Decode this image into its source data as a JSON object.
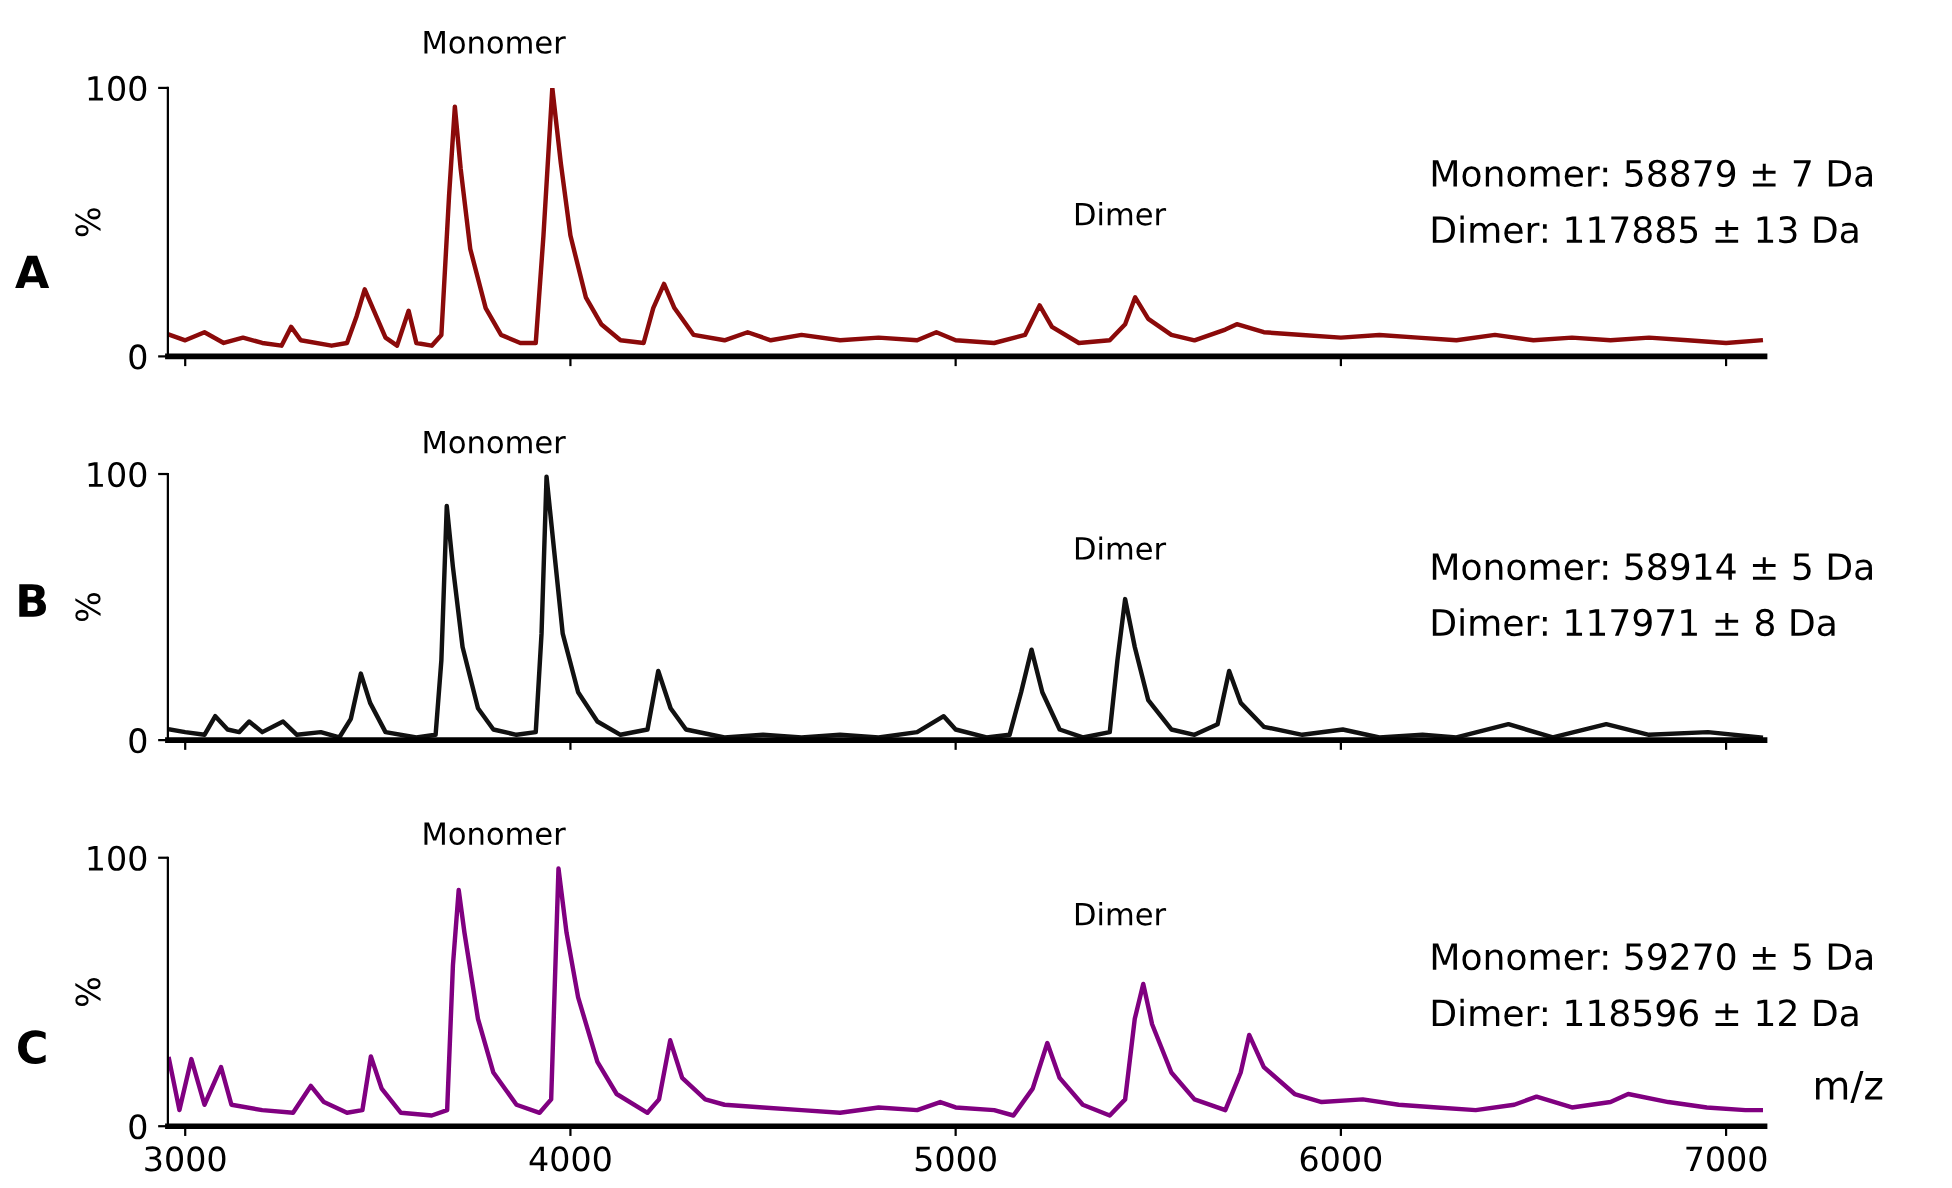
{
  "chart_data": [
    {
      "type": "line",
      "ylabel": "%",
      "xlim": [
        2955,
        7100
      ],
      "ylim": [
        0,
        100
      ],
      "yticks": [
        0,
        100
      ],
      "xticks": [
        3000,
        4000,
        5000,
        6000,
        7000
      ],
      "tick_labels": "y",
      "grid": false,
      "legend": false,
      "annotations": [
        "A",
        "Monomer",
        "Dimer",
        "Monomer: 58879 ± 7 Da",
        "Dimer: 117885 ± 13 Da"
      ],
      "series": [
        {
          "color": "#8b0a0a",
          "x": [
            2960,
            3000,
            3050,
            3100,
            3150,
            3200,
            3250,
            3275,
            3300,
            3380,
            3420,
            3445,
            3466,
            3490,
            3520,
            3550,
            3580,
            3600,
            3640,
            3665,
            3685,
            3700,
            3715,
            3740,
            3780,
            3820,
            3870,
            3910,
            3930,
            3953,
            3975,
            4000,
            4040,
            4080,
            4130,
            4190,
            4215,
            4243,
            4270,
            4320,
            4400,
            4460,
            4520,
            4600,
            4700,
            4800,
            4900,
            4950,
            5000,
            5100,
            5180,
            5218,
            5250,
            5320,
            5400,
            5440,
            5466,
            5500,
            5560,
            5620,
            5700,
            5730,
            5800,
            5900,
            6000,
            6100,
            6200,
            6300,
            6400,
            6500,
            6600,
            6700,
            6800,
            6900,
            7000,
            7090
          ],
          "values": [
            8,
            6,
            9,
            5,
            7,
            5,
            4,
            11,
            6,
            4,
            5,
            15,
            25,
            17,
            7,
            4,
            17,
            5,
            4,
            8,
            60,
            93,
            70,
            40,
            18,
            8,
            5,
            5,
            45,
            100,
            72,
            45,
            22,
            12,
            6,
            5,
            18,
            27,
            18,
            8,
            6,
            9,
            6,
            8,
            6,
            7,
            6,
            9,
            6,
            5,
            8,
            19,
            11,
            5,
            6,
            12,
            22,
            14,
            8,
            6,
            10,
            12,
            9,
            8,
            7,
            8,
            7,
            6,
            8,
            6,
            7,
            6,
            7,
            6,
            5,
            6
          ]
        }
      ]
    },
    {
      "type": "line",
      "ylabel": "%",
      "xlim": [
        2955,
        7100
      ],
      "ylim": [
        0,
        100
      ],
      "yticks": [
        0,
        100
      ],
      "xticks": [
        3000,
        4000,
        5000,
        6000,
        7000
      ],
      "tick_labels": "y",
      "grid": false,
      "legend": false,
      "annotations": [
        "B",
        "Monomer",
        "Dimer",
        "Monomer: 58914 ± 5 Da",
        "Dimer: 117971 ± 8 Da"
      ],
      "series": [
        {
          "color": "#111111",
          "x": [
            2960,
            3000,
            3050,
            3078,
            3110,
            3140,
            3166,
            3200,
            3254,
            3290,
            3352,
            3400,
            3430,
            3456,
            3480,
            3520,
            3600,
            3650,
            3665,
            3679,
            3695,
            3720,
            3760,
            3800,
            3860,
            3910,
            3925,
            3938,
            3955,
            3980,
            4020,
            4070,
            4130,
            4200,
            4228,
            4260,
            4300,
            4400,
            4500,
            4600,
            4700,
            4800,
            4900,
            4969,
            5000,
            5080,
            5140,
            5170,
            5197,
            5225,
            5270,
            5330,
            5400,
            5420,
            5440,
            5465,
            5500,
            5560,
            5620,
            5680,
            5710,
            5740,
            5800,
            5900,
            6005,
            6100,
            6212,
            6300,
            6435,
            6550,
            6689,
            6800,
            6953,
            7090
          ],
          "values": [
            4,
            3,
            2,
            9,
            4,
            3,
            7,
            3,
            7,
            2,
            3,
            1,
            8,
            25,
            14,
            3,
            1,
            2,
            30,
            88,
            65,
            35,
            12,
            4,
            2,
            3,
            40,
            99,
            75,
            40,
            18,
            7,
            2,
            4,
            26,
            12,
            4,
            1,
            2,
            1,
            2,
            1,
            3,
            9,
            4,
            1,
            2,
            18,
            34,
            18,
            4,
            1,
            3,
            30,
            53,
            35,
            15,
            4,
            2,
            6,
            26,
            14,
            5,
            2,
            4,
            1,
            2,
            1,
            6,
            1,
            6,
            2,
            3,
            1
          ]
        }
      ]
    },
    {
      "type": "line",
      "ylabel": "%",
      "xlabel": "m/z",
      "xlim": [
        2955,
        7100
      ],
      "ylim": [
        0,
        100
      ],
      "yticks": [
        0,
        100
      ],
      "xticks": [
        3000,
        4000,
        5000,
        6000,
        7000
      ],
      "grid": false,
      "legend": false,
      "annotations": [
        "C",
        "Monomer",
        "Dimer",
        "Monomer: 59270 ± 5 Da",
        "Dimer: 118596 ± 12 Da"
      ],
      "series": [
        {
          "color": "#800080",
          "x": [
            2958,
            2985,
            3016,
            3050,
            3093,
            3120,
            3200,
            3280,
            3326,
            3360,
            3420,
            3460,
            3482,
            3510,
            3560,
            3640,
            3680,
            3695,
            3710,
            3725,
            3760,
            3800,
            3860,
            3920,
            3950,
            3969,
            3990,
            4020,
            4070,
            4120,
            4200,
            4230,
            4259,
            4290,
            4350,
            4400,
            4500,
            4600,
            4700,
            4800,
            4900,
            4960,
            5000,
            5100,
            5150,
            5200,
            5238,
            5270,
            5330,
            5400,
            5440,
            5465,
            5487,
            5510,
            5560,
            5620,
            5700,
            5740,
            5762,
            5800,
            5880,
            5950,
            6057,
            6150,
            6250,
            6350,
            6450,
            6508,
            6600,
            6700,
            6746,
            6850,
            6950,
            7050,
            7090
          ],
          "values": [
            25,
            6,
            25,
            8,
            22,
            8,
            6,
            5,
            15,
            9,
            5,
            6,
            26,
            14,
            5,
            4,
            6,
            60,
            88,
            72,
            40,
            20,
            8,
            5,
            10,
            96,
            72,
            48,
            24,
            12,
            5,
            10,
            32,
            18,
            10,
            8,
            7,
            6,
            5,
            7,
            6,
            9,
            7,
            6,
            4,
            14,
            31,
            18,
            8,
            4,
            10,
            40,
            53,
            38,
            20,
            10,
            6,
            20,
            34,
            22,
            12,
            9,
            10,
            8,
            7,
            6,
            8,
            11,
            7,
            9,
            12,
            9,
            7,
            6,
            6
          ]
        }
      ]
    }
  ]
}
